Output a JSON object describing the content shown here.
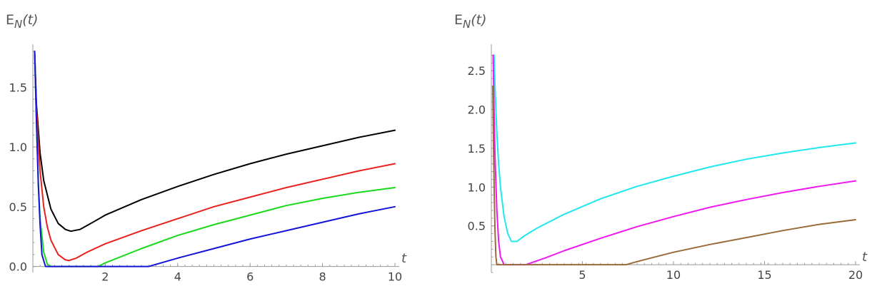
{
  "chart_data": [
    {
      "type": "line",
      "ylabel_main": "E",
      "ylabel_sub": "N",
      "ylabel_arg": "(t)",
      "xlabel": "t",
      "xlim": [
        0,
        10
      ],
      "ylim": [
        -0.05,
        1.8
      ],
      "xticks": [
        2,
        4,
        6,
        8,
        10
      ],
      "xtick_labels": [
        "2",
        "4",
        "6",
        "8",
        "10"
      ],
      "yticks": [
        0.0,
        0.5,
        1.0,
        1.5
      ],
      "ytick_labels": [
        "0.0",
        "0.5",
        "1.0",
        "1.5"
      ],
      "series": [
        {
          "name": "black",
          "color": "#000000",
          "x": [
            0.05,
            0.1,
            0.2,
            0.3,
            0.5,
            0.7,
            0.9,
            1.05,
            1.3,
            1.6,
            2,
            3,
            4,
            5,
            6,
            7,
            8,
            9,
            10
          ],
          "y": [
            1.8,
            1.35,
            0.95,
            0.72,
            0.48,
            0.36,
            0.31,
            0.295,
            0.31,
            0.36,
            0.43,
            0.56,
            0.67,
            0.77,
            0.86,
            0.94,
            1.01,
            1.08,
            1.14
          ]
        },
        {
          "name": "red",
          "color": "#e8201e",
          "x": [
            0.05,
            0.1,
            0.2,
            0.3,
            0.4,
            0.5,
            0.7,
            0.9,
            1.0,
            1.2,
            1.5,
            2,
            3,
            4,
            5,
            6,
            7,
            8,
            9,
            10
          ],
          "y": [
            1.8,
            1.3,
            0.8,
            0.5,
            0.33,
            0.22,
            0.1,
            0.055,
            0.05,
            0.07,
            0.12,
            0.19,
            0.3,
            0.4,
            0.5,
            0.58,
            0.66,
            0.73,
            0.8,
            0.86
          ]
        },
        {
          "name": "green",
          "color": "#1ad81a",
          "x": [
            0.05,
            0.1,
            0.15,
            0.2,
            0.3,
            0.4,
            0.5,
            1.0,
            1.5,
            1.8,
            2,
            3,
            4,
            5,
            6,
            7,
            8,
            9,
            10
          ],
          "y": [
            1.8,
            1.2,
            0.7,
            0.4,
            0.12,
            0.02,
            0.0,
            0.0,
            0.0,
            0.0,
            0.03,
            0.15,
            0.26,
            0.35,
            0.43,
            0.51,
            0.57,
            0.62,
            0.66
          ]
        },
        {
          "name": "blue",
          "color": "#1414d8",
          "x": [
            0.05,
            0.1,
            0.15,
            0.2,
            0.25,
            0.35,
            1,
            2,
            3.2,
            4,
            5,
            6,
            7,
            8,
            9,
            10
          ],
          "y": [
            1.8,
            1.2,
            0.7,
            0.35,
            0.1,
            0.0,
            0.0,
            0.0,
            0.0,
            0.07,
            0.15,
            0.23,
            0.3,
            0.37,
            0.44,
            0.5
          ]
        }
      ]
    },
    {
      "type": "line",
      "ylabel_main": "E",
      "ylabel_sub": "N",
      "ylabel_arg": "(t)",
      "xlabel": "t",
      "xlim": [
        0,
        20
      ],
      "ylim": [
        -0.1,
        2.75
      ],
      "xticks": [
        5,
        10,
        15,
        20
      ],
      "xtick_labels": [
        "5",
        "10",
        "15",
        "20"
      ],
      "yticks": [
        0.5,
        1.0,
        1.5,
        2.0,
        2.5
      ],
      "ytick_labels": [
        "0.5",
        "1.0",
        "1.5",
        "2.0",
        "2.5"
      ],
      "series": [
        {
          "name": "cyan",
          "color": "#1ee8ee",
          "x": [
            0.15,
            0.2,
            0.3,
            0.4,
            0.5,
            0.7,
            0.9,
            1.1,
            1.4,
            1.8,
            2.5,
            4,
            6,
            8,
            10,
            12,
            14,
            16,
            18,
            20
          ],
          "y": [
            2.7,
            2.3,
            1.7,
            1.3,
            1.0,
            0.62,
            0.4,
            0.3,
            0.3,
            0.37,
            0.47,
            0.65,
            0.85,
            1.01,
            1.14,
            1.26,
            1.36,
            1.44,
            1.51,
            1.57
          ]
        },
        {
          "name": "magenta",
          "color": "#ee1aee",
          "x": [
            0.1,
            0.15,
            0.2,
            0.3,
            0.4,
            0.5,
            0.7,
            1,
            1.9,
            3,
            4,
            6,
            8,
            10,
            12,
            14,
            16,
            18,
            20
          ],
          "y": [
            2.7,
            2.0,
            1.4,
            0.7,
            0.3,
            0.1,
            0.0,
            0.0,
            0.0,
            0.09,
            0.18,
            0.34,
            0.49,
            0.62,
            0.74,
            0.84,
            0.93,
            1.01,
            1.08
          ]
        },
        {
          "name": "brown",
          "color": "#9a6b3a",
          "x": [
            0.08,
            0.12,
            0.16,
            0.2,
            0.25,
            0.3,
            1,
            4,
            7.4,
            8,
            9,
            10,
            12,
            14,
            16,
            18,
            20
          ],
          "y": [
            2.3,
            1.5,
            0.9,
            0.45,
            0.1,
            0.0,
            0.0,
            0.0,
            0.0,
            0.04,
            0.1,
            0.16,
            0.26,
            0.35,
            0.44,
            0.52,
            0.58
          ]
        }
      ]
    }
  ]
}
